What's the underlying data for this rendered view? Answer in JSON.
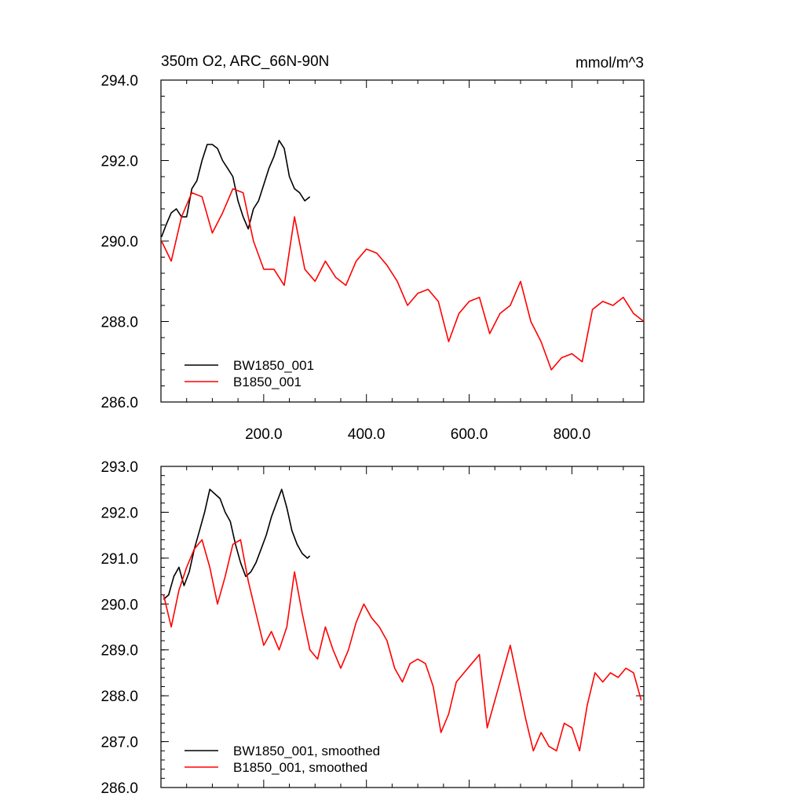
{
  "figure": {
    "title_left": "350m O2, ARC_66N-90N",
    "title_right": "mmol/m^3"
  },
  "chart_data": [
    {
      "type": "line",
      "title": "350m O2, ARC_66N-90N",
      "units": "mmol/m^3",
      "xlim": [
        0,
        940
      ],
      "ylim": [
        286.0,
        294.0
      ],
      "x_ticks": [
        200,
        400,
        600,
        800
      ],
      "x_tick_labels": [
        "200.0",
        "400.0",
        "600.0",
        "800.0"
      ],
      "y_ticks": [
        286,
        288,
        290,
        292,
        294
      ],
      "y_tick_labels": [
        "286.0",
        "288.0",
        "290.0",
        "292.0",
        "294.0"
      ],
      "legend_position": "bottom-left",
      "series": [
        {
          "name": "BW1850_001",
          "color": "#000000",
          "x": [
            1,
            10,
            20,
            30,
            40,
            50,
            60,
            70,
            80,
            90,
            100,
            110,
            120,
            130,
            140,
            150,
            160,
            170,
            180,
            190,
            200,
            210,
            220,
            230,
            240,
            250,
            260,
            270,
            280,
            290
          ],
          "y": [
            290.1,
            290.4,
            290.7,
            290.8,
            290.6,
            290.6,
            291.3,
            291.5,
            292.0,
            292.4,
            292.4,
            292.3,
            292.0,
            291.8,
            291.6,
            291.0,
            290.6,
            290.3,
            290.8,
            291.0,
            291.4,
            291.8,
            292.1,
            292.5,
            292.3,
            291.6,
            291.3,
            291.2,
            291.0,
            291.1
          ],
          "values_note": ""
        },
        {
          "name": "B1850_001",
          "color": "#ff0000",
          "x": [
            1,
            20,
            40,
            60,
            80,
            100,
            120,
            140,
            160,
            180,
            200,
            220,
            240,
            260,
            280,
            300,
            320,
            340,
            360,
            380,
            400,
            420,
            440,
            460,
            480,
            500,
            520,
            540,
            560,
            580,
            600,
            620,
            640,
            660,
            680,
            700,
            720,
            740,
            760,
            780,
            800,
            820,
            840,
            860,
            880,
            900,
            920,
            940
          ],
          "y": [
            290.0,
            289.5,
            290.6,
            291.2,
            291.1,
            290.2,
            290.7,
            291.3,
            291.2,
            290.0,
            289.3,
            289.3,
            288.9,
            290.6,
            289.3,
            289.0,
            289.5,
            289.1,
            288.9,
            289.5,
            289.8,
            289.7,
            289.4,
            289.0,
            288.4,
            288.7,
            288.8,
            288.5,
            287.5,
            288.2,
            288.5,
            288.6,
            287.7,
            288.2,
            288.4,
            289.0,
            288.0,
            287.5,
            286.8,
            287.1,
            287.2,
            287.0,
            288.3,
            288.5,
            288.4,
            288.6,
            288.2,
            288.0
          ]
        }
      ]
    },
    {
      "type": "line",
      "xlim": [
        0,
        940
      ],
      "ylim": [
        286.0,
        293.0
      ],
      "x_ticks": [
        200,
        400,
        600,
        800
      ],
      "x_tick_labels": [],
      "y_ticks": [
        286,
        287,
        288,
        289,
        290,
        291,
        292,
        293
      ],
      "y_tick_labels": [
        "286.0",
        "287.0",
        "288.0",
        "289.0",
        "290.0",
        "291.0",
        "292.0",
        "293.0"
      ],
      "legend_position": "bottom-left",
      "series": [
        {
          "name": "BW1850_001, smoothed",
          "color": "#000000",
          "x": [
            5,
            15,
            25,
            35,
            45,
            55,
            65,
            75,
            85,
            95,
            105,
            115,
            125,
            135,
            145,
            155,
            165,
            175,
            185,
            195,
            205,
            215,
            225,
            235,
            245,
            255,
            265,
            275,
            285,
            290
          ],
          "y": [
            290.1,
            290.2,
            290.6,
            290.8,
            290.4,
            290.7,
            291.2,
            291.6,
            292.0,
            292.5,
            292.4,
            292.3,
            292.0,
            291.8,
            291.3,
            290.9,
            290.6,
            290.7,
            290.9,
            291.2,
            291.5,
            291.9,
            292.2,
            292.5,
            292.1,
            291.6,
            291.3,
            291.1,
            291.0,
            291.05
          ]
        },
        {
          "name": "B1850_001, smoothed",
          "color": "#ff0000",
          "x": [
            5,
            20,
            35,
            50,
            65,
            80,
            95,
            110,
            125,
            140,
            155,
            170,
            185,
            200,
            215,
            230,
            245,
            260,
            275,
            290,
            305,
            320,
            335,
            350,
            365,
            380,
            395,
            410,
            425,
            440,
            455,
            470,
            485,
            500,
            515,
            530,
            545,
            560,
            575,
            590,
            605,
            620,
            635,
            650,
            665,
            680,
            695,
            710,
            725,
            740,
            755,
            770,
            785,
            800,
            815,
            830,
            845,
            860,
            875,
            890,
            905,
            920,
            935
          ],
          "y": [
            290.2,
            289.5,
            290.3,
            290.8,
            291.2,
            291.4,
            290.8,
            290.0,
            290.6,
            291.3,
            291.4,
            290.5,
            289.8,
            289.1,
            289.4,
            289.0,
            289.5,
            290.7,
            289.8,
            289.0,
            288.8,
            289.5,
            289.0,
            288.6,
            289.0,
            289.6,
            290.0,
            289.7,
            289.5,
            289.2,
            288.6,
            288.3,
            288.7,
            288.8,
            288.7,
            288.2,
            287.2,
            287.6,
            288.3,
            288.5,
            288.7,
            288.9,
            287.3,
            287.9,
            288.5,
            289.1,
            288.3,
            287.5,
            286.8,
            287.2,
            286.9,
            286.8,
            287.4,
            287.3,
            286.8,
            287.8,
            288.5,
            288.3,
            288.5,
            288.4,
            288.6,
            288.5,
            287.9
          ]
        }
      ]
    }
  ]
}
